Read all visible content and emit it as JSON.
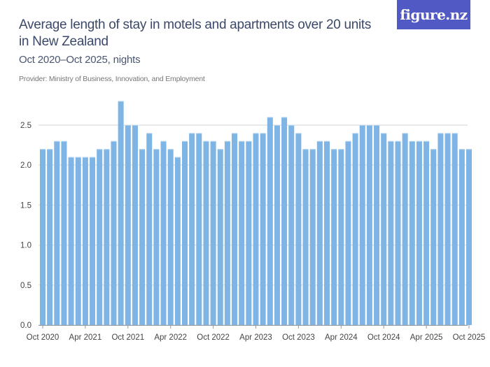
{
  "header": {
    "title": "Average length of stay in motels and apartments over 20 units in New Zealand",
    "subtitle": "Oct 2020–Oct 2025, nights",
    "provider": "Provider: Ministry of Business, Innovation, and Employment",
    "logo_text": "figure.nz"
  },
  "colors": {
    "bar": "#7fb5e4",
    "bar_top": "#a9cdee",
    "grid": "#e3e3e3",
    "logo_bg": "#5159c4"
  },
  "chart_data": {
    "type": "bar",
    "title": "Average length of stay in motels and apartments over 20 units in New Zealand",
    "subtitle": "Oct 2020–Oct 2025, nights",
    "ylim": [
      0,
      2.8
    ],
    "yticks": [
      "0.0",
      "0.5",
      "1.0",
      "1.5",
      "2.0",
      "2.5"
    ],
    "grid": true,
    "xtick_labels": [
      "Oct 2020",
      "Apr 2021",
      "Oct 2021",
      "Apr 2022",
      "Oct 2022",
      "Apr 2023",
      "Oct 2023",
      "Apr 2024",
      "Oct 2024",
      "Apr 2025",
      "Oct 2025"
    ],
    "categories": [
      "Oct 2020",
      "Nov 2020",
      "Dec 2020",
      "Jan 2021",
      "Feb 2021",
      "Mar 2021",
      "Apr 2021",
      "May 2021",
      "Jun 2021",
      "Jul 2021",
      "Aug 2021",
      "Sep 2021",
      "Oct 2021",
      "Nov 2021",
      "Dec 2021",
      "Jan 2022",
      "Feb 2022",
      "Mar 2022",
      "Apr 2022",
      "May 2022",
      "Jun 2022",
      "Jul 2022",
      "Aug 2022",
      "Sep 2022",
      "Oct 2022",
      "Nov 2022",
      "Dec 2022",
      "Jan 2023",
      "Feb 2023",
      "Mar 2023",
      "Apr 2023",
      "May 2023",
      "Jun 2023",
      "Jul 2023",
      "Aug 2023",
      "Sep 2023",
      "Oct 2023",
      "Nov 2023",
      "Dec 2023",
      "Jan 2024",
      "Feb 2024",
      "Mar 2024",
      "Apr 2024",
      "May 2024",
      "Jun 2024",
      "Jul 2024",
      "Aug 2024",
      "Sep 2024",
      "Oct 2024",
      "Nov 2024",
      "Dec 2024",
      "Jan 2025",
      "Feb 2025",
      "Mar 2025",
      "Apr 2025",
      "May 2025",
      "Jun 2025",
      "Jul 2025",
      "Aug 2025",
      "Sep 2025",
      "Oct 2025"
    ],
    "values": [
      2.2,
      2.2,
      2.3,
      2.3,
      2.1,
      2.1,
      2.1,
      2.1,
      2.2,
      2.2,
      2.3,
      2.8,
      2.5,
      2.5,
      2.2,
      2.4,
      2.2,
      2.3,
      2.2,
      2.1,
      2.3,
      2.4,
      2.4,
      2.3,
      2.3,
      2.2,
      2.3,
      2.4,
      2.3,
      2.3,
      2.4,
      2.4,
      2.6,
      2.5,
      2.6,
      2.5,
      2.4,
      2.2,
      2.2,
      2.3,
      2.3,
      2.2,
      2.2,
      2.3,
      2.4,
      2.5,
      2.5,
      2.5,
      2.4,
      2.3,
      2.3,
      2.4,
      2.3,
      2.3,
      2.3,
      2.2,
      2.4,
      2.4,
      2.4,
      2.2,
      2.2
    ]
  }
}
